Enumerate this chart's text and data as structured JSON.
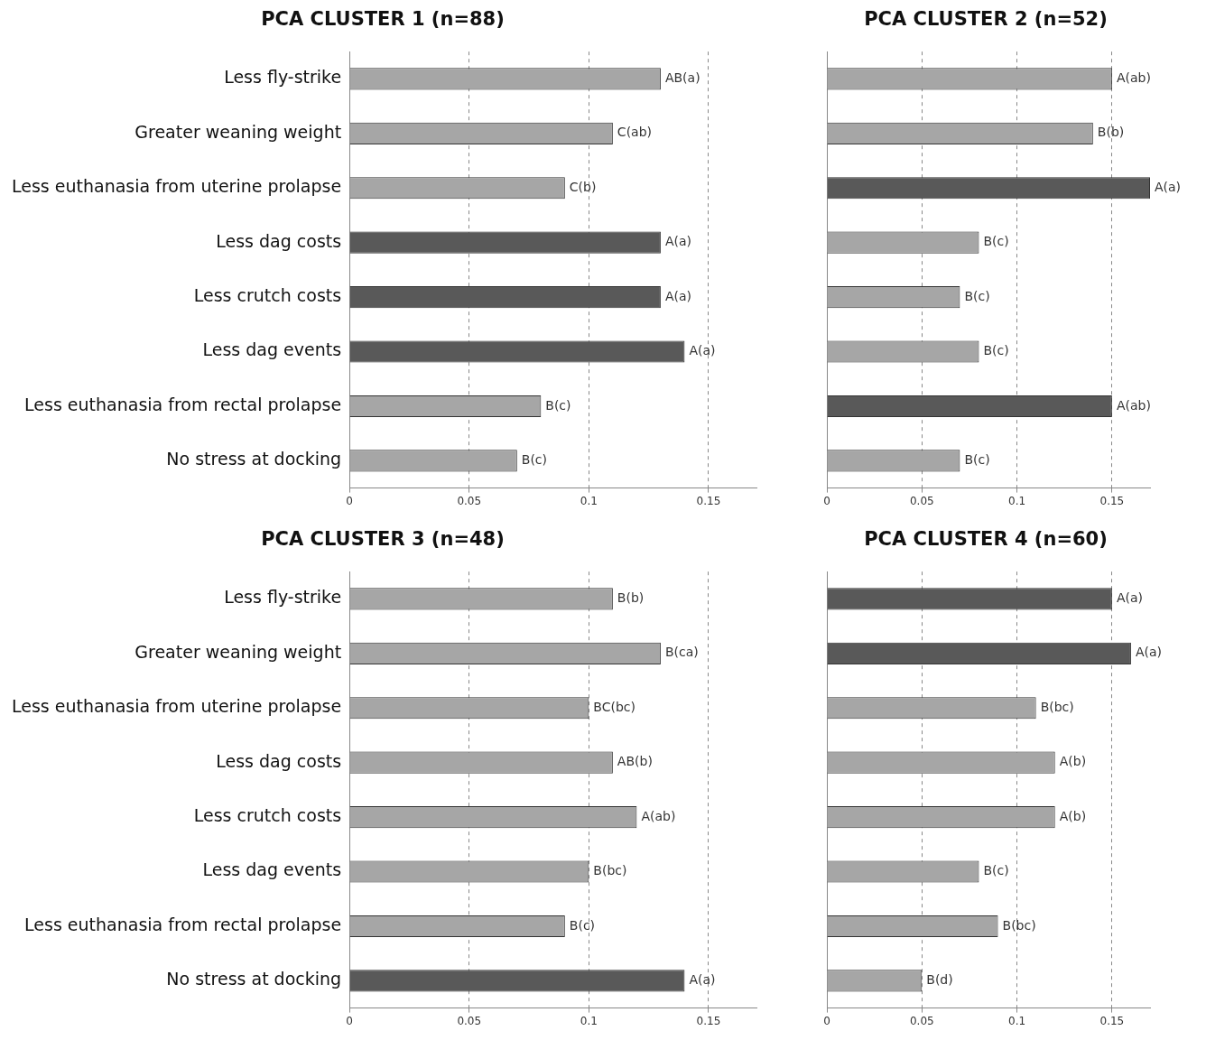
{
  "chart_data": [
    {
      "type": "bar",
      "orientation": "horizontal",
      "title": "PCA CLUSTER 1 (n=88)",
      "categories": [
        "Less fly-strike",
        "Greater weaning weight",
        "Less euthanasia from uterine prolapse",
        "Less dag costs",
        "Less crutch costs",
        "Less dag events",
        "Less euthanasia from rectal prolapse",
        "No stress at docking"
      ],
      "values": [
        0.13,
        0.11,
        0.09,
        0.13,
        0.13,
        0.14,
        0.08,
        0.07
      ],
      "colors": [
        "#a6a6a6",
        "#a6a6a6",
        "#a6a6a6",
        "#595959",
        "#595959",
        "#595959",
        "#a6a6a6",
        "#a6a6a6"
      ],
      "value_labels": [
        "AB(a)",
        "C(ab)",
        "C(b)",
        "A(a)",
        "A(a)",
        "A(a)",
        "B(c)",
        "B(c)"
      ],
      "xlim": [
        0,
        0.17
      ],
      "xticks": [
        0,
        0.05,
        0.1,
        0.15
      ],
      "grid": "x",
      "legend": false
    },
    {
      "type": "bar",
      "orientation": "horizontal",
      "title": "PCA CLUSTER 2 (n=52)",
      "categories": [
        null,
        null,
        null,
        null,
        null,
        null,
        null,
        null
      ],
      "values": [
        0.15,
        0.14,
        0.17,
        0.08,
        0.07,
        0.08,
        0.15,
        0.07
      ],
      "colors": [
        "#a6a6a6",
        "#a6a6a6",
        "#595959",
        "#a6a6a6",
        "#a6a6a6",
        "#a6a6a6",
        "#595959",
        "#a6a6a6"
      ],
      "value_labels": [
        "A(ab)",
        "B(b)",
        "A(a)",
        "B(c)",
        "B(c)",
        "B(c)",
        "A(ab)",
        "B(c)"
      ],
      "xlim": [
        0,
        0.17
      ],
      "xticks": [
        0,
        0.05,
        0.1,
        0.15
      ],
      "grid": "x",
      "legend": false,
      "tick_labels": "x"
    },
    {
      "type": "bar",
      "orientation": "horizontal",
      "title": "PCA CLUSTER 3 (n=48)",
      "categories": [
        "Less fly-strike",
        "Greater weaning weight",
        "Less euthanasia from uterine prolapse",
        "Less dag costs",
        "Less crutch costs",
        "Less dag events",
        "Less euthanasia from rectal prolapse",
        "No stress at docking"
      ],
      "values": [
        0.11,
        0.13,
        0.1,
        0.11,
        0.12,
        0.1,
        0.09,
        0.14
      ],
      "colors": [
        "#a6a6a6",
        "#a6a6a6",
        "#a6a6a6",
        "#a6a6a6",
        "#a6a6a6",
        "#a6a6a6",
        "#a6a6a6",
        "#595959"
      ],
      "value_labels": [
        "B(b)",
        "B(ca)",
        "BC(bc)",
        "AB(b)",
        "A(ab)",
        "B(bc)",
        "B(c)",
        "A(a)"
      ],
      "xlim": [
        0,
        0.17
      ],
      "xticks": [
        0,
        0.05,
        0.1,
        0.15
      ],
      "grid": "x",
      "legend": false
    },
    {
      "type": "bar",
      "orientation": "horizontal",
      "title": "PCA CLUSTER 4 (n=60)",
      "categories": [
        null,
        null,
        null,
        null,
        null,
        null,
        null,
        null
      ],
      "values": [
        0.15,
        0.16,
        0.11,
        0.12,
        0.12,
        0.08,
        0.09,
        0.05
      ],
      "colors": [
        "#595959",
        "#595959",
        "#a6a6a6",
        "#a6a6a6",
        "#a6a6a6",
        "#a6a6a6",
        "#a6a6a6",
        "#a6a6a6"
      ],
      "value_labels": [
        "A(a)",
        "A(a)",
        "B(bc)",
        "A(b)",
        "A(b)",
        "B(c)",
        "B(bc)",
        "B(d)"
      ],
      "xlim": [
        0,
        0.17
      ],
      "xticks": [
        0,
        0.05,
        0.1,
        0.15
      ],
      "grid": "x",
      "legend": false,
      "tick_labels": "x"
    }
  ]
}
